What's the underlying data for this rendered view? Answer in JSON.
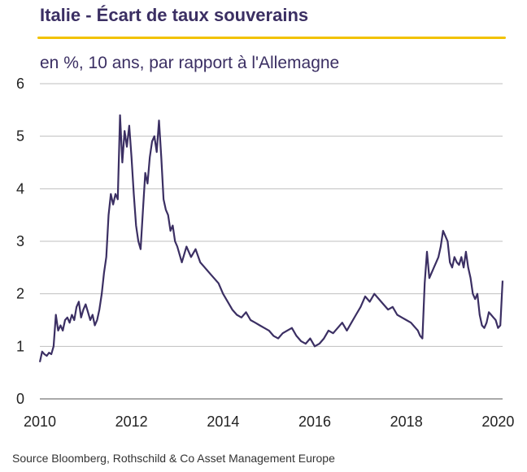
{
  "header": {
    "title": "Italie - Écart de taux souverains",
    "subtitle": "en %, 10 ans, par rapport à l'Allemagne"
  },
  "footer": {
    "source": "Source Bloomberg, Rothschild & Co Asset Management  Europe"
  },
  "colors": {
    "title": "#3b2f63",
    "accent_rule": "#f2c200",
    "line": "#3b2f63",
    "grid": "#bfbfbf"
  },
  "chart_data": {
    "type": "line",
    "title": "Italie - Écart de taux souverains",
    "subtitle": "en %, 10 ans, par rapport à l'Allemagne",
    "xlim": [
      2010,
      2020.1
    ],
    "ylim": [
      0,
      6
    ],
    "x_ticks": [
      2010,
      2012,
      2014,
      2016,
      2018,
      2020
    ],
    "x_tick_labels": [
      "2010",
      "2012",
      "2014",
      "2016",
      "2018",
      "2020"
    ],
    "y_ticks": [
      0,
      1,
      2,
      3,
      4,
      5,
      6
    ],
    "y_tick_labels": [
      "0",
      "1",
      "2",
      "3",
      "4",
      "5",
      "6"
    ],
    "grid": "horizontal",
    "legend": "none",
    "series": [
      {
        "x": [
          2010.0,
          2010.05,
          2010.1,
          2010.15,
          2010.2,
          2010.25,
          2010.3,
          2010.35,
          2010.4,
          2010.45,
          2010.5,
          2010.55,
          2010.6,
          2010.65,
          2010.7,
          2010.75,
          2010.8,
          2010.85,
          2010.9,
          2010.95,
          2011.0,
          2011.05,
          2011.1,
          2011.15,
          2011.2,
          2011.25,
          2011.3,
          2011.35,
          2011.4,
          2011.45,
          2011.5,
          2011.55,
          2011.6,
          2011.65,
          2011.7,
          2011.75,
          2011.8,
          2011.85,
          2011.9,
          2011.95,
          2012.0,
          2012.05,
          2012.1,
          2012.15,
          2012.2,
          2012.25,
          2012.3,
          2012.35,
          2012.4,
          2012.45,
          2012.5,
          2012.55,
          2012.6,
          2012.65,
          2012.7,
          2012.75,
          2012.8,
          2012.85,
          2012.9,
          2012.95,
          2013.0,
          2013.1,
          2013.2,
          2013.3,
          2013.4,
          2013.5,
          2013.6,
          2013.7,
          2013.8,
          2013.9,
          2014.0,
          2014.1,
          2014.2,
          2014.3,
          2014.4,
          2014.5,
          2014.6,
          2014.7,
          2014.8,
          2014.9,
          2015.0,
          2015.1,
          2015.2,
          2015.3,
          2015.4,
          2015.5,
          2015.6,
          2015.7,
          2015.8,
          2015.9,
          2016.0,
          2016.1,
          2016.2,
          2016.3,
          2016.4,
          2016.5,
          2016.6,
          2016.7,
          2016.8,
          2016.9,
          2017.0,
          2017.1,
          2017.2,
          2017.3,
          2017.4,
          2017.5,
          2017.6,
          2017.7,
          2017.8,
          2017.9,
          2018.0,
          2018.1,
          2018.2,
          2018.25,
          2018.3,
          2018.35,
          2018.4,
          2018.45,
          2018.5,
          2018.55,
          2018.6,
          2018.65,
          2018.7,
          2018.75,
          2018.8,
          2018.85,
          2018.9,
          2018.95,
          2019.0,
          2019.05,
          2019.1,
          2019.15,
          2019.2,
          2019.25,
          2019.3,
          2019.35,
          2019.4,
          2019.45,
          2019.5,
          2019.55,
          2019.6,
          2019.65,
          2019.7,
          2019.75,
          2019.8,
          2019.85,
          2019.9,
          2019.95,
          2020.0,
          2020.05,
          2020.1
        ],
        "values": [
          0.7,
          0.9,
          0.85,
          0.82,
          0.88,
          0.85,
          1.0,
          1.6,
          1.3,
          1.4,
          1.3,
          1.5,
          1.55,
          1.45,
          1.6,
          1.5,
          1.75,
          1.85,
          1.55,
          1.7,
          1.8,
          1.65,
          1.5,
          1.6,
          1.4,
          1.5,
          1.7,
          2.0,
          2.4,
          2.7,
          3.5,
          3.9,
          3.7,
          3.9,
          3.8,
          5.4,
          4.5,
          5.1,
          4.8,
          5.2,
          4.6,
          3.9,
          3.3,
          3.0,
          2.85,
          3.6,
          4.3,
          4.1,
          4.6,
          4.9,
          5.0,
          4.7,
          5.3,
          4.6,
          3.8,
          3.6,
          3.5,
          3.2,
          3.3,
          3.0,
          2.9,
          2.6,
          2.9,
          2.7,
          2.85,
          2.6,
          2.5,
          2.4,
          2.3,
          2.2,
          2.0,
          1.85,
          1.7,
          1.6,
          1.55,
          1.65,
          1.5,
          1.45,
          1.4,
          1.35,
          1.3,
          1.2,
          1.15,
          1.25,
          1.3,
          1.35,
          1.2,
          1.1,
          1.05,
          1.15,
          1.0,
          1.05,
          1.15,
          1.3,
          1.25,
          1.35,
          1.45,
          1.3,
          1.45,
          1.6,
          1.75,
          1.95,
          1.85,
          2.0,
          1.9,
          1.8,
          1.7,
          1.75,
          1.6,
          1.55,
          1.5,
          1.45,
          1.35,
          1.3,
          1.2,
          1.15,
          2.2,
          2.8,
          2.3,
          2.4,
          2.5,
          2.6,
          2.7,
          2.9,
          3.2,
          3.1,
          3.0,
          2.6,
          2.5,
          2.7,
          2.6,
          2.55,
          2.7,
          2.5,
          2.8,
          2.5,
          2.3,
          2.0,
          1.9,
          2.0,
          1.6,
          1.4,
          1.35,
          1.45,
          1.65,
          1.6,
          1.55,
          1.5,
          1.35,
          1.4,
          2.25
        ]
      }
    ]
  }
}
